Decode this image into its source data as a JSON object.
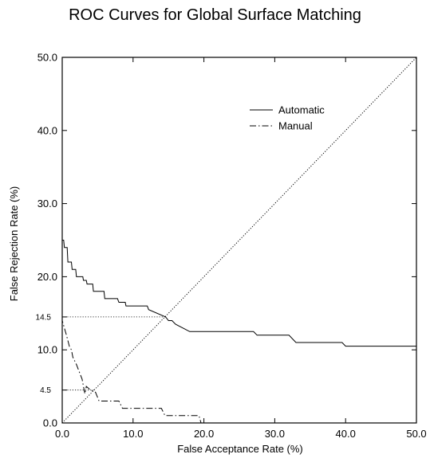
{
  "chart_data": {
    "type": "line",
    "title": "ROC Curves for Global Surface Matching",
    "xlabel": "False Acceptance Rate (%)",
    "ylabel": "False Rejection Rate (%)",
    "xlim": [
      0,
      50
    ],
    "ylim": [
      0,
      50
    ],
    "x_ticks": [
      "0.0",
      "10.0",
      "20.0",
      "30.0",
      "40.0",
      "50.0"
    ],
    "y_ticks": [
      "0.0",
      "10.0",
      "20.0",
      "30.0",
      "40.0",
      "50.0"
    ],
    "reference_ticks": [
      "14.5",
      "4.5"
    ],
    "reference_lines": [
      {
        "label": "14.5",
        "x": 14.5,
        "y": 14.5
      },
      {
        "label": "4.5",
        "x": 4.5,
        "y": 4.5
      }
    ],
    "diagonal": {
      "style": "dotted",
      "points": [
        [
          0,
          0
        ],
        [
          50,
          50
        ]
      ]
    },
    "legend_position": "top-right",
    "series": [
      {
        "name": "Automatic",
        "style": "solid",
        "points": [
          [
            0,
            50
          ],
          [
            0,
            25
          ],
          [
            0.2,
            25
          ],
          [
            0.3,
            24
          ],
          [
            0.7,
            24
          ],
          [
            0.8,
            22
          ],
          [
            1.3,
            22
          ],
          [
            1.4,
            21
          ],
          [
            1.9,
            21
          ],
          [
            2,
            20
          ],
          [
            2.9,
            20
          ],
          [
            3,
            19.5
          ],
          [
            3.4,
            19.5
          ],
          [
            3.5,
            19
          ],
          [
            4.3,
            19
          ],
          [
            4.4,
            18
          ],
          [
            5.9,
            18
          ],
          [
            6,
            17
          ],
          [
            7.8,
            17
          ],
          [
            8,
            16.5
          ],
          [
            8.9,
            16.5
          ],
          [
            9,
            16
          ],
          [
            12,
            16
          ],
          [
            12.2,
            15.5
          ],
          [
            14.6,
            14.5
          ],
          [
            15,
            14
          ],
          [
            15.5,
            14
          ],
          [
            16,
            13.5
          ],
          [
            17,
            13
          ],
          [
            18,
            12.5
          ],
          [
            27,
            12.5
          ],
          [
            27.5,
            12
          ],
          [
            32,
            12
          ],
          [
            33,
            11
          ],
          [
            39.5,
            11
          ],
          [
            40,
            10.5
          ],
          [
            50,
            10.5
          ]
        ]
      },
      {
        "name": "Manual",
        "style": "dash-dot",
        "points": [
          [
            0,
            50
          ],
          [
            0,
            14
          ],
          [
            0.3,
            13
          ],
          [
            0.6,
            12
          ],
          [
            1,
            10.5
          ],
          [
            1.3,
            10
          ],
          [
            1.5,
            9
          ],
          [
            2,
            8
          ],
          [
            2.4,
            7
          ],
          [
            2.8,
            6
          ],
          [
            3,
            5
          ],
          [
            3.2,
            4
          ],
          [
            3.4,
            5
          ],
          [
            4,
            4.5
          ],
          [
            4.7,
            4.2
          ],
          [
            5.2,
            3
          ],
          [
            8,
            3
          ],
          [
            8.5,
            2
          ],
          [
            14,
            2
          ],
          [
            14.5,
            1
          ],
          [
            19.3,
            1
          ],
          [
            19.6,
            0
          ],
          [
            50,
            0
          ]
        ]
      }
    ]
  }
}
